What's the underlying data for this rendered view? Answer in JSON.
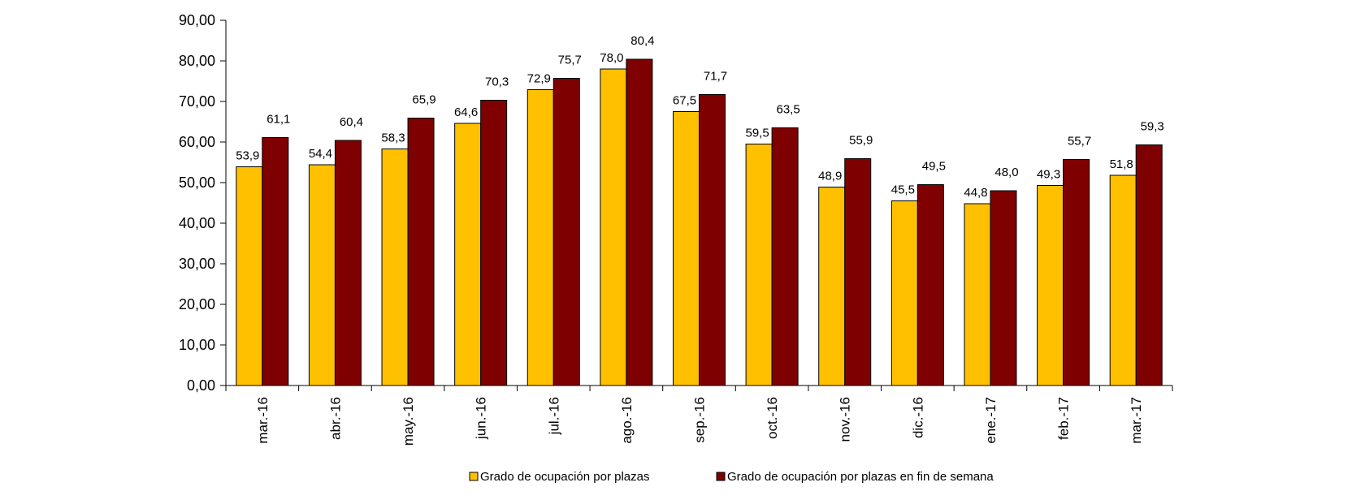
{
  "chart_data": {
    "type": "bar",
    "title": "",
    "xlabel": "",
    "ylabel": "",
    "ylim": [
      0,
      90
    ],
    "yticks": [
      "0,00",
      "10,00",
      "20,00",
      "30,00",
      "40,00",
      "50,00",
      "60,00",
      "70,00",
      "80,00",
      "90,00"
    ],
    "grid": false,
    "legend_position": "bottom",
    "categories": [
      "mar.-16",
      "abr.-16",
      "may.-16",
      "jun.-16",
      "jul.-16",
      "ago.-16",
      "sep.-16",
      "oct.-16",
      "nov.-16",
      "dic.-16",
      "ene.-17",
      "feb.-17",
      "mar.-17"
    ],
    "series": [
      {
        "name": "Grado de ocupación por plazas",
        "color": "#FFC000",
        "values": [
          53.9,
          54.4,
          58.3,
          64.6,
          72.9,
          78.0,
          67.5,
          59.5,
          48.9,
          45.5,
          44.8,
          49.3,
          51.8
        ],
        "labels": [
          "53,9",
          "54,4",
          "58,3",
          "64,6",
          "72,9",
          "78,0",
          "67,5",
          "59,5",
          "48,9",
          "45,5",
          "44,8",
          "49,3",
          "51,8"
        ]
      },
      {
        "name": "Grado de ocupación por plazas en fin de semana",
        "color": "#7F0000",
        "values": [
          61.1,
          60.4,
          65.9,
          70.3,
          75.7,
          80.4,
          71.7,
          63.5,
          55.9,
          49.5,
          48.0,
          55.7,
          59.3
        ],
        "labels": [
          "61,1",
          "60,4",
          "65,9",
          "70,3",
          "75,7",
          "80,4",
          "71,7",
          "63,5",
          "55,9",
          "49,5",
          "48,0",
          "55,7",
          "59,3"
        ]
      }
    ]
  }
}
